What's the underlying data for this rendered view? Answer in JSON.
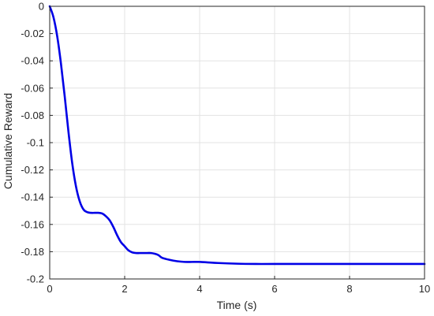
{
  "chart_data": {
    "type": "line",
    "title": "",
    "xlabel": "Time (s)",
    "ylabel": "Cumulative Reward",
    "xlim": [
      0,
      10
    ],
    "ylim": [
      -0.2,
      0
    ],
    "grid": true,
    "x_ticks": [
      0,
      2,
      4,
      6,
      8,
      10
    ],
    "x_tick_labels": [
      "0",
      "2",
      "4",
      "6",
      "8",
      "10"
    ],
    "y_ticks": [
      0,
      -0.02,
      -0.04,
      -0.06,
      -0.08,
      -0.1,
      -0.12,
      -0.14,
      -0.16,
      -0.18,
      -0.2
    ],
    "y_tick_labels": [
      "0",
      "-0.02",
      "-0.04",
      "-0.06",
      "-0.08",
      "-0.1",
      "-0.12",
      "-0.14",
      "-0.16",
      "-0.18",
      "-0.2"
    ],
    "series": [
      {
        "color": "#0000e6",
        "x": [
          0,
          0.1,
          0.2,
          0.3,
          0.4,
          0.5,
          0.6,
          0.7,
          0.8,
          0.9,
          1.0,
          1.1,
          1.2,
          1.3,
          1.4,
          1.5,
          1.6,
          1.7,
          1.8,
          1.9,
          2.0,
          2.1,
          2.2,
          2.3,
          2.4,
          2.5,
          2.6,
          2.7,
          2.8,
          2.9,
          3.0,
          3.2,
          3.4,
          3.6,
          3.8,
          4.0,
          4.2,
          4.5,
          5.0,
          5.5,
          6.0,
          7.0,
          8.0,
          9.0,
          10.0
        ],
        "y": [
          0,
          -0.008,
          -0.022,
          -0.042,
          -0.066,
          -0.092,
          -0.115,
          -0.132,
          -0.143,
          -0.149,
          -0.151,
          -0.1515,
          -0.1515,
          -0.1515,
          -0.152,
          -0.154,
          -0.157,
          -0.162,
          -0.168,
          -0.173,
          -0.176,
          -0.179,
          -0.1805,
          -0.181,
          -0.181,
          -0.181,
          -0.181,
          -0.181,
          -0.1815,
          -0.1825,
          -0.1845,
          -0.186,
          -0.187,
          -0.1875,
          -0.1875,
          -0.1875,
          -0.1878,
          -0.1883,
          -0.1888,
          -0.189,
          -0.189,
          -0.189,
          -0.189,
          -0.189,
          -0.189
        ]
      }
    ]
  }
}
